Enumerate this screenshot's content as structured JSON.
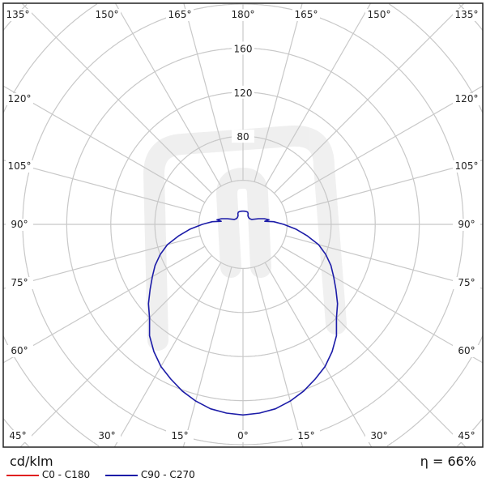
{
  "chart_data": {
    "type": "polar-line",
    "unit_label": "cd/klm",
    "efficiency_label": "η = 66%",
    "radial_ticks": [
      80,
      120,
      160
    ],
    "radial_rings": [
      40,
      80,
      120,
      160,
      200,
      240,
      280,
      320
    ],
    "angle_step_deg": 15,
    "angle_labels": {
      "top": [
        "135°",
        "150°",
        "165°",
        "180°",
        "165°",
        "150°",
        "135°"
      ],
      "left": [
        "120°",
        "105°",
        "90°",
        "75°",
        "60°"
      ],
      "right": [
        "120°",
        "105°",
        "90°",
        "75°",
        "60°"
      ],
      "bottom": [
        "45°",
        "30°",
        "15°",
        "0°",
        "15°",
        "30°",
        "45°"
      ]
    },
    "grid": true,
    "legend_position": "bottom-left",
    "series": [
      {
        "name": "C0 - C180",
        "color": "#e02020",
        "angles": [],
        "values": []
      },
      {
        "name": "C90 - C270",
        "color": "#1c1ca8",
        "angles": [
          0,
          5,
          10,
          15,
          20,
          25,
          30,
          35,
          40,
          45,
          50,
          55,
          60,
          65,
          70,
          75,
          80,
          85,
          90,
          95,
          98,
          100,
          105,
          110,
          120,
          130,
          140,
          150,
          155,
          160,
          165,
          170,
          175,
          180
        ],
        "values": [
          173,
          172,
          170,
          166,
          161,
          155,
          149,
          141,
          132,
          120,
          112,
          103,
          95,
          88,
          80,
          71,
          59,
          48,
          37,
          28,
          20,
          24,
          20,
          15,
          9,
          8,
          8,
          9,
          11,
          12,
          12,
          12,
          12,
          12
        ]
      }
    ]
  }
}
